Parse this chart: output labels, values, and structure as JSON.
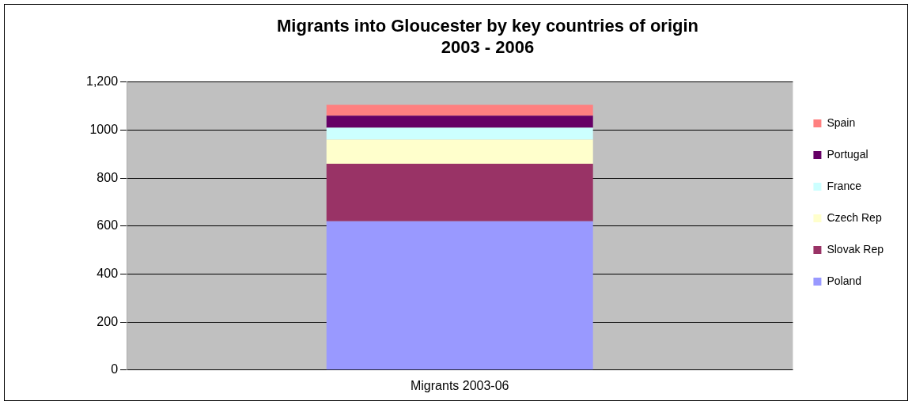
{
  "chart_data": {
    "type": "bar",
    "title": "Migrants into Gloucester by key countries of origin\n2003 - 2006",
    "categories": [
      "Migrants 2003-06"
    ],
    "stacked": true,
    "series": [
      {
        "name": "Poland",
        "color": "#9999ff",
        "values": [
          620
        ]
      },
      {
        "name": "Slovak Rep",
        "color": "#993366",
        "values": [
          240
        ]
      },
      {
        "name": "Czech Rep",
        "color": "#ffffcc",
        "values": [
          100
        ]
      },
      {
        "name": "France",
        "color": "#ccffff",
        "values": [
          50
        ]
      },
      {
        "name": "Portugal",
        "color": "#660066",
        "values": [
          50
        ]
      },
      {
        "name": "Spain",
        "color": "#ff8080",
        "values": [
          45
        ]
      }
    ],
    "ylim": [
      0,
      1200
    ],
    "yticks": [
      0,
      200,
      400,
      600,
      800,
      1000,
      {
        "value": 1200,
        "label": "1,200"
      }
    ],
    "grid": "y",
    "legend": "right"
  }
}
